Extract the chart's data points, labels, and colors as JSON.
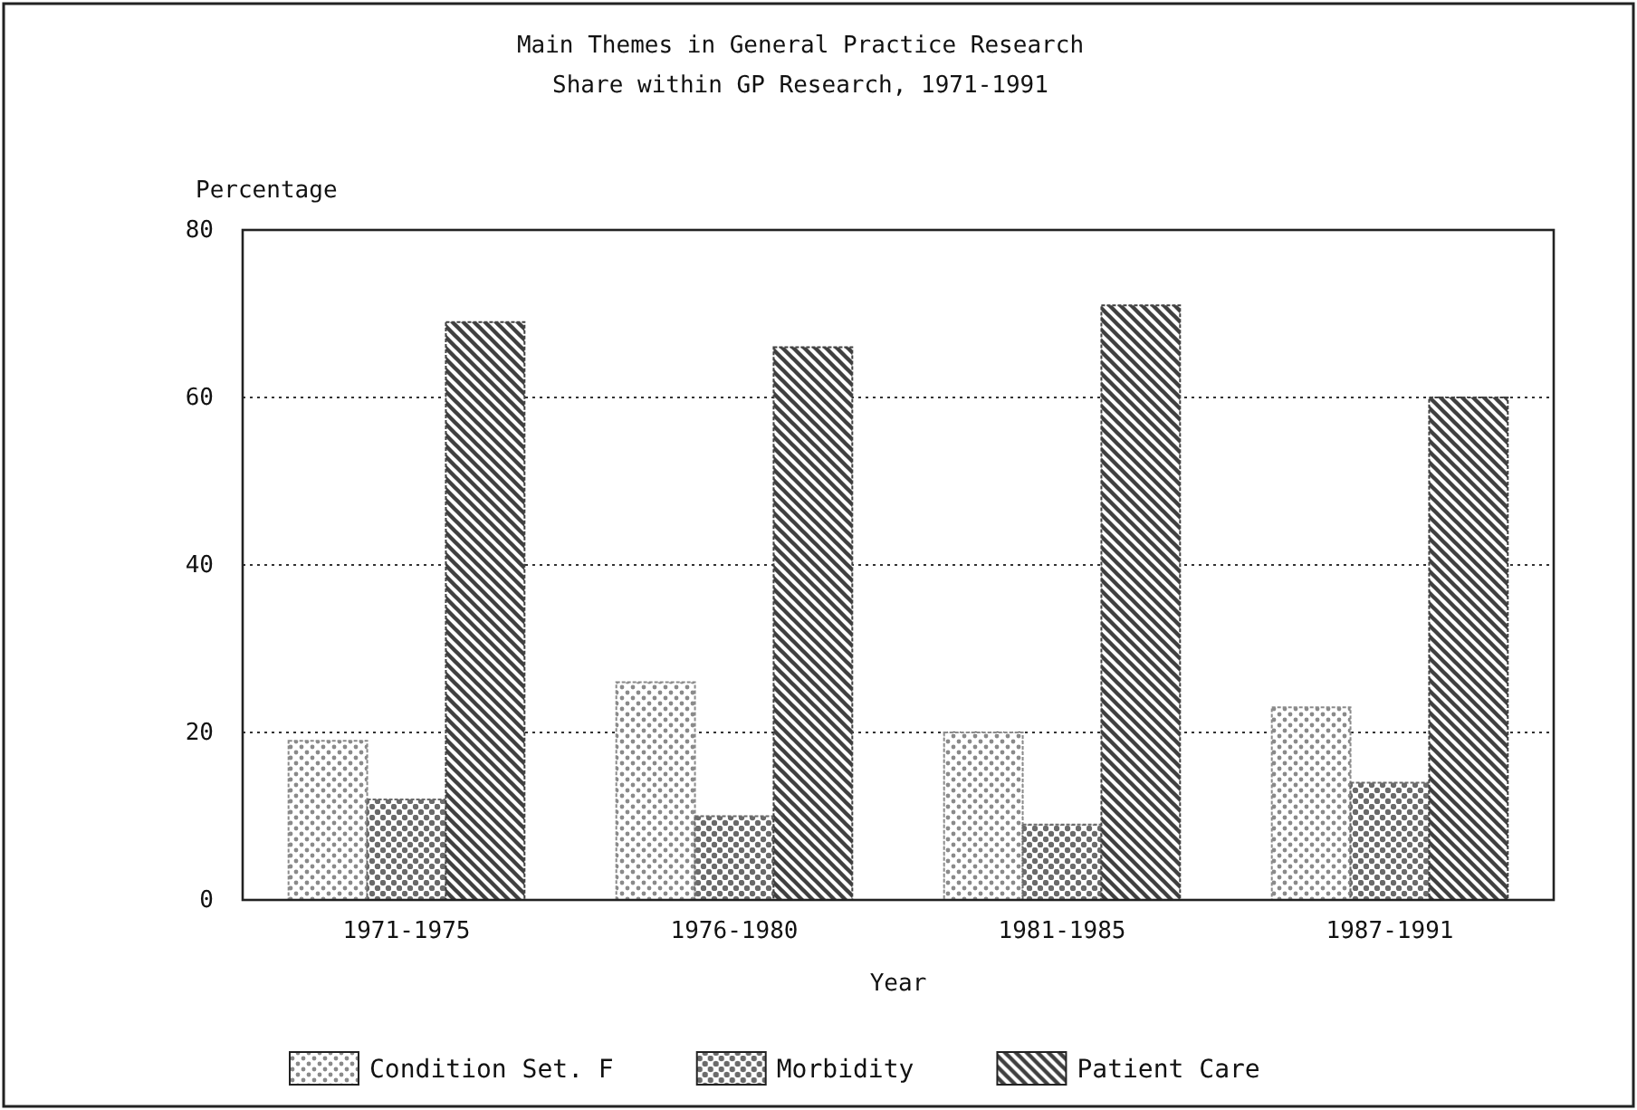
{
  "chart_data": {
    "type": "bar",
    "title": "Main Themes in General Practice Research",
    "subtitle": "Share within GP Research, 1971-1991",
    "xlabel": "Year",
    "ylabel": "Percentage",
    "categories": [
      "1971-1975",
      "1976-1980",
      "1981-1985",
      "1987-1991"
    ],
    "series": [
      {
        "name": "Condition Set. F",
        "color": "#8a8a8a",
        "values": [
          19,
          26,
          20,
          23
        ]
      },
      {
        "name": "Morbidity",
        "color": "#6a6a6a",
        "values": [
          12,
          10,
          9,
          14
        ]
      },
      {
        "name": "Patient Care",
        "color": "#404040",
        "values": [
          69,
          66,
          71,
          60
        ]
      }
    ],
    "ylim": [
      0,
      80
    ],
    "yticks": [
      0,
      20,
      40,
      60,
      80
    ],
    "grid": "y",
    "legend": "bottom"
  }
}
